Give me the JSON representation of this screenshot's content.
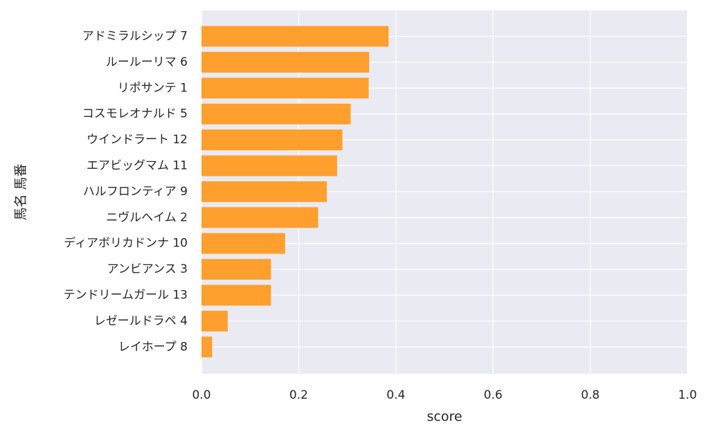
{
  "chart_data": {
    "type": "bar",
    "orientation": "horizontal",
    "categories": [
      "アドミラルシップ 7",
      "ルールーリマ 6",
      "リポサンテ 1",
      "コスモレオナルド 5",
      "ウインドラート 12",
      "エアビッグマム 11",
      "ハルフロンティア 9",
      "ニヴルヘイム 2",
      "ディアボリカドンナ 10",
      "アンビアンス 3",
      "テンドリームガール 13",
      "レゼールドラペ 4",
      "レイホープ 8"
    ],
    "values": [
      0.385,
      0.345,
      0.344,
      0.307,
      0.29,
      0.279,
      0.258,
      0.24,
      0.172,
      0.143,
      0.143,
      0.054,
      0.022
    ],
    "xlabel": "score",
    "ylabel": "馬名 馬番",
    "xlim": [
      0,
      1.0
    ],
    "xticks": [
      "0.0",
      "0.2",
      "0.4",
      "0.6",
      "0.8",
      "1.0"
    ],
    "xtick_values": [
      0,
      0.2,
      0.4,
      0.6,
      0.8,
      1.0
    ],
    "grid": true,
    "colors": {
      "bar": "#ff9f2e",
      "plot_bg": "#eaeaf2",
      "grid": "#ffffff",
      "text": "#262626"
    }
  }
}
